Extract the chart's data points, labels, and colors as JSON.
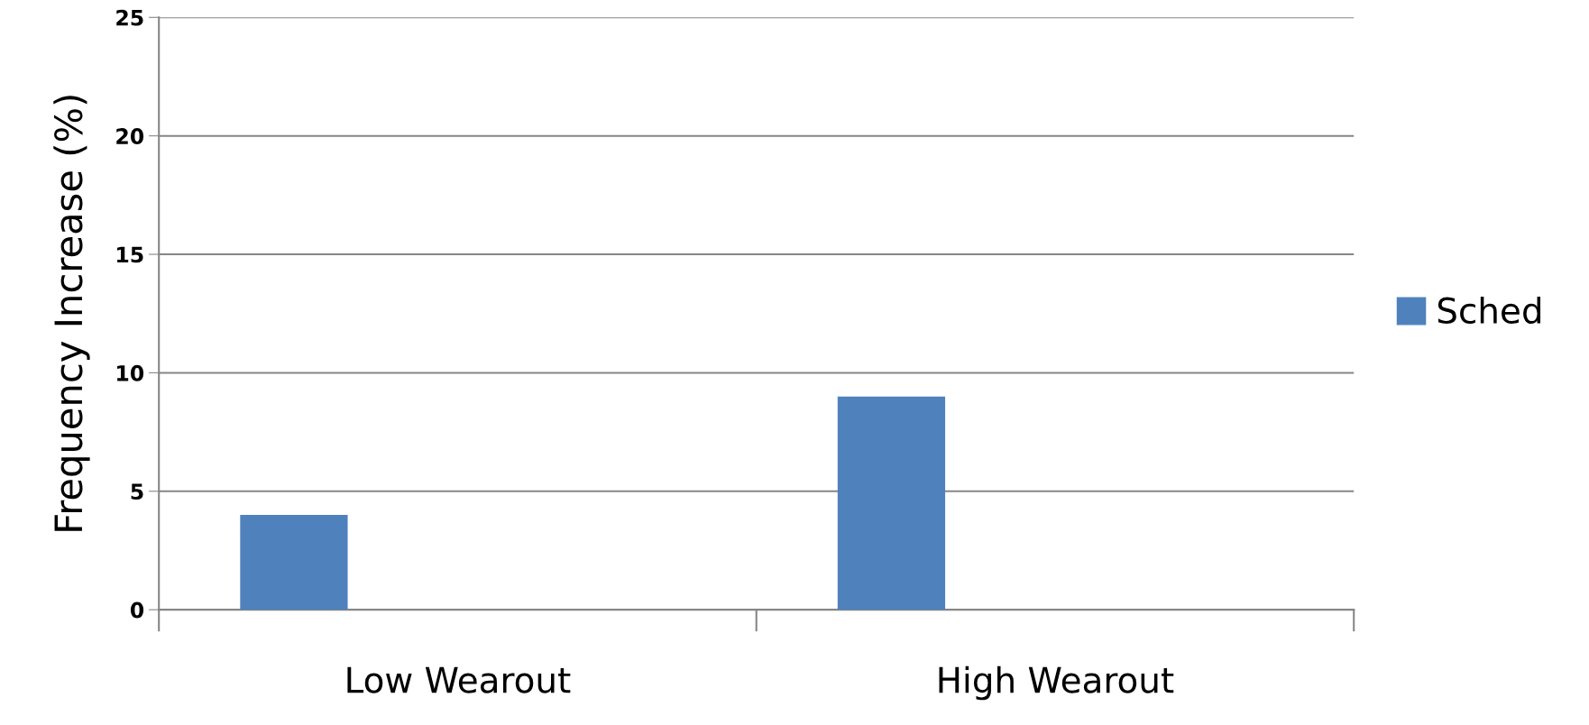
{
  "chart_data": {
    "type": "bar",
    "ylabel": "Frequency Increase (%)",
    "categories": [
      "Low Wearout",
      "High Wearout"
    ],
    "series": [
      {
        "name": "Sched",
        "color": "#4f81bd",
        "values": [
          4.0,
          9.0
        ]
      }
    ],
    "ylim": [
      0,
      25
    ],
    "yticks": [
      0,
      5,
      10,
      15,
      20,
      25
    ],
    "grid": "y",
    "legend": "right"
  }
}
